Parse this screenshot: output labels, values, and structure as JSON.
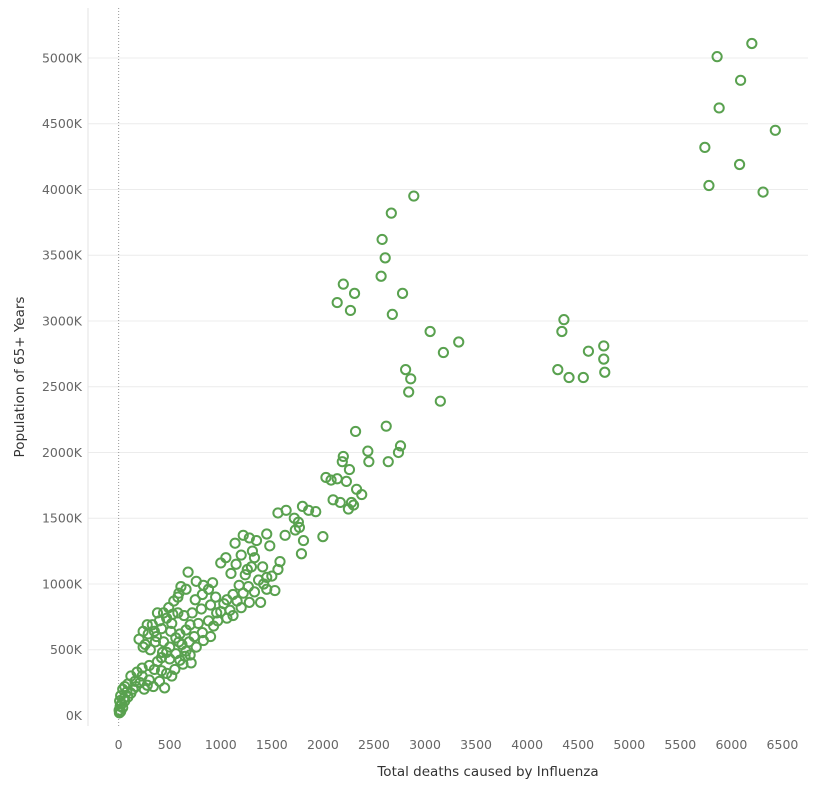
{
  "chart_data": {
    "type": "scatter",
    "title": "",
    "xlabel": "Total deaths caused by Influenza",
    "ylabel": "Population of 65+ Years",
    "xlim": [
      -300,
      6750
    ],
    "ylim": [
      -80000,
      5380000
    ],
    "x_ticks": [
      0,
      500,
      1000,
      1500,
      2000,
      2500,
      3000,
      3500,
      4000,
      4500,
      5000,
      5500,
      6000,
      6500
    ],
    "x_tick_labels": [
      "0",
      "500",
      "1000",
      "1500",
      "2000",
      "2500",
      "3000",
      "3500",
      "4000",
      "4500",
      "5000",
      "5500",
      "6000",
      "6500"
    ],
    "y_ticks": [
      0,
      500000,
      1000000,
      1500000,
      2000000,
      2500000,
      3000000,
      3500000,
      4000000,
      4500000,
      5000000
    ],
    "y_tick_labels": [
      "0K",
      "500K",
      "1000K",
      "1500K",
      "2000K",
      "2500K",
      "3000K",
      "3500K",
      "4000K",
      "4500K",
      "5000K"
    ],
    "grid": true,
    "marker": "hollow-circle",
    "color": "#59a14f",
    "series": [
      {
        "points": [
          [
            6200,
            5110000
          ],
          [
            5860,
            5010000
          ],
          [
            6090,
            4830000
          ],
          [
            5880,
            4620000
          ],
          [
            6430,
            4450000
          ],
          [
            5740,
            4320000
          ],
          [
            5780,
            4030000
          ],
          [
            6080,
            4190000
          ],
          [
            6310,
            3980000
          ],
          [
            2890,
            3950000
          ],
          [
            2670,
            3820000
          ],
          [
            2580,
            3620000
          ],
          [
            2610,
            3480000
          ],
          [
            2570,
            3340000
          ],
          [
            2200,
            3280000
          ],
          [
            2310,
            3210000
          ],
          [
            2780,
            3210000
          ],
          [
            2140,
            3140000
          ],
          [
            2270,
            3080000
          ],
          [
            2680,
            3050000
          ],
          [
            3050,
            2920000
          ],
          [
            3330,
            2840000
          ],
          [
            3180,
            2760000
          ],
          [
            2810,
            2630000
          ],
          [
            2860,
            2560000
          ],
          [
            2840,
            2460000
          ],
          [
            3150,
            2390000
          ],
          [
            4360,
            3010000
          ],
          [
            4340,
            2920000
          ],
          [
            4750,
            2810000
          ],
          [
            4600,
            2770000
          ],
          [
            4750,
            2710000
          ],
          [
            4300,
            2630000
          ],
          [
            4760,
            2610000
          ],
          [
            4410,
            2570000
          ],
          [
            4550,
            2570000
          ],
          [
            2620,
            2200000
          ],
          [
            2320,
            2160000
          ],
          [
            2760,
            2050000
          ],
          [
            2440,
            2010000
          ],
          [
            2740,
            2000000
          ],
          [
            2200,
            1970000
          ],
          [
            2190,
            1930000
          ],
          [
            2450,
            1930000
          ],
          [
            2640,
            1930000
          ],
          [
            2260,
            1870000
          ],
          [
            2030,
            1810000
          ],
          [
            2080,
            1790000
          ],
          [
            2140,
            1800000
          ],
          [
            2230,
            1780000
          ],
          [
            2330,
            1720000
          ],
          [
            2380,
            1680000
          ],
          [
            2100,
            1640000
          ],
          [
            2170,
            1620000
          ],
          [
            2280,
            1620000
          ],
          [
            2300,
            1600000
          ],
          [
            2250,
            1570000
          ],
          [
            1800,
            1590000
          ],
          [
            1640,
            1560000
          ],
          [
            1560,
            1540000
          ],
          [
            1860,
            1560000
          ],
          [
            1930,
            1550000
          ],
          [
            1720,
            1500000
          ],
          [
            1760,
            1470000
          ],
          [
            1770,
            1430000
          ],
          [
            1730,
            1410000
          ],
          [
            1630,
            1370000
          ],
          [
            2000,
            1360000
          ],
          [
            1810,
            1330000
          ],
          [
            1790,
            1230000
          ],
          [
            1450,
            1380000
          ],
          [
            1280,
            1350000
          ],
          [
            1350,
            1330000
          ],
          [
            1220,
            1370000
          ],
          [
            1140,
            1310000
          ],
          [
            1200,
            1220000
          ],
          [
            1310,
            1250000
          ],
          [
            1480,
            1290000
          ],
          [
            1050,
            1200000
          ],
          [
            1000,
            1160000
          ],
          [
            1150,
            1150000
          ],
          [
            1580,
            1170000
          ],
          [
            1560,
            1110000
          ],
          [
            1300,
            1130000
          ],
          [
            1410,
            1130000
          ],
          [
            1100,
            1080000
          ],
          [
            1370,
            1030000
          ],
          [
            1240,
            1070000
          ],
          [
            1420,
            1000000
          ],
          [
            1270,
            980000
          ],
          [
            1450,
            960000
          ],
          [
            1530,
            950000
          ],
          [
            1330,
            940000
          ],
          [
            1220,
            930000
          ],
          [
            1120,
            920000
          ],
          [
            1060,
            880000
          ],
          [
            1160,
            870000
          ],
          [
            1280,
            860000
          ],
          [
            1390,
            860000
          ],
          [
            1200,
            820000
          ],
          [
            1090,
            800000
          ],
          [
            1000,
            790000
          ],
          [
            920,
            1010000
          ],
          [
            830,
            990000
          ],
          [
            760,
            1020000
          ],
          [
            680,
            1090000
          ],
          [
            880,
            960000
          ],
          [
            950,
            900000
          ],
          [
            820,
            920000
          ],
          [
            750,
            880000
          ],
          [
            1030,
            850000
          ],
          [
            900,
            840000
          ],
          [
            810,
            810000
          ],
          [
            960,
            780000
          ],
          [
            1060,
            740000
          ],
          [
            720,
            780000
          ],
          [
            640,
            760000
          ],
          [
            880,
            720000
          ],
          [
            780,
            700000
          ],
          [
            700,
            690000
          ],
          [
            930,
            680000
          ],
          [
            660,
            650000
          ],
          [
            820,
            630000
          ],
          [
            740,
            600000
          ],
          [
            600,
            620000
          ],
          [
            560,
            590000
          ],
          [
            690,
            560000
          ],
          [
            830,
            570000
          ],
          [
            620,
            540000
          ],
          [
            500,
            520000
          ],
          [
            440,
            560000
          ],
          [
            360,
            560000
          ],
          [
            260,
            540000
          ],
          [
            240,
            520000
          ],
          [
            310,
            500000
          ],
          [
            470,
            480000
          ],
          [
            560,
            470000
          ],
          [
            650,
            450000
          ],
          [
            420,
            440000
          ],
          [
            500,
            430000
          ],
          [
            380,
            410000
          ],
          [
            300,
            380000
          ],
          [
            230,
            360000
          ],
          [
            350,
            350000
          ],
          [
            420,
            340000
          ],
          [
            470,
            320000
          ],
          [
            520,
            300000
          ],
          [
            600,
            420000
          ],
          [
            630,
            390000
          ],
          [
            350,
            640000
          ],
          [
            420,
            660000
          ],
          [
            240,
            640000
          ],
          [
            280,
            690000
          ],
          [
            520,
            700000
          ],
          [
            580,
            780000
          ],
          [
            440,
            780000
          ],
          [
            380,
            780000
          ],
          [
            490,
            820000
          ],
          [
            540,
            870000
          ],
          [
            590,
            930000
          ],
          [
            610,
            980000
          ],
          [
            660,
            960000
          ],
          [
            580,
            900000
          ],
          [
            530,
            770000
          ],
          [
            470,
            740000
          ],
          [
            400,
            720000
          ],
          [
            330,
            690000
          ],
          [
            290,
            620000
          ],
          [
            200,
            580000
          ],
          [
            180,
            330000
          ],
          [
            230,
            300000
          ],
          [
            120,
            300000
          ],
          [
            160,
            260000
          ],
          [
            210,
            250000
          ],
          [
            280,
            230000
          ],
          [
            340,
            220000
          ],
          [
            90,
            240000
          ],
          [
            60,
            220000
          ],
          [
            40,
            200000
          ],
          [
            80,
            180000
          ],
          [
            120,
            170000
          ],
          [
            20,
            150000
          ],
          [
            50,
            130000
          ],
          [
            10,
            110000
          ],
          [
            30,
            90000
          ],
          [
            15,
            70000
          ],
          [
            40,
            60000
          ],
          [
            5,
            40000
          ],
          [
            20,
            30000
          ],
          [
            8,
            20000
          ],
          [
            60,
            110000
          ],
          [
            90,
            140000
          ],
          [
            140,
            200000
          ],
          [
            170,
            220000
          ],
          [
            250,
            200000
          ],
          [
            300,
            270000
          ],
          [
            400,
            260000
          ],
          [
            450,
            210000
          ],
          [
            550,
            350000
          ],
          [
            700,
            460000
          ],
          [
            760,
            520000
          ],
          [
            900,
            600000
          ],
          [
            970,
            720000
          ],
          [
            1120,
            760000
          ],
          [
            1180,
            990000
          ],
          [
            1260,
            1110000
          ],
          [
            1330,
            1200000
          ],
          [
            1450,
            1050000
          ],
          [
            1500,
            1060000
          ],
          [
            710,
            400000
          ],
          [
            660,
            490000
          ],
          [
            590,
            560000
          ],
          [
            510,
            640000
          ],
          [
            430,
            480000
          ],
          [
            370,
            600000
          ]
        ]
      }
    ]
  }
}
